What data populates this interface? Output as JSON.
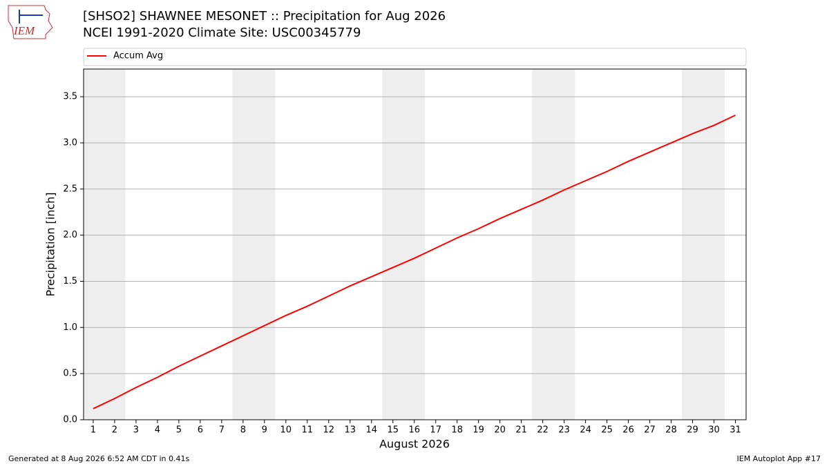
{
  "logo_text": "IEM",
  "footer_left": "Generated at 8 Aug 2026 6:52 AM CDT in 0.41s",
  "footer_right": "IEM Autoplot App #17",
  "chart_data": {
    "type": "line",
    "title": "[SHSO2] SHAWNEE MESONET :: Precipitation for Aug 2026",
    "subtitle": "NCEI 1991-2020 Climate Site: USC00345779",
    "x_label": "August 2026",
    "y_label": "Precipitation [inch]",
    "x": [
      1,
      2,
      3,
      4,
      5,
      6,
      7,
      8,
      9,
      10,
      11,
      12,
      13,
      14,
      15,
      16,
      17,
      18,
      19,
      20,
      21,
      22,
      23,
      24,
      25,
      26,
      27,
      28,
      29,
      30,
      31
    ],
    "series": [
      {
        "name": "Accum Avg",
        "color": "#ff0000",
        "values": [
          0.12,
          0.23,
          0.35,
          0.46,
          0.58,
          0.69,
          0.8,
          0.91,
          1.02,
          1.13,
          1.23,
          1.34,
          1.45,
          1.55,
          1.65,
          1.75,
          1.86,
          1.97,
          2.07,
          2.18,
          2.28,
          2.38,
          2.49,
          2.59,
          2.69,
          2.8,
          2.9,
          3.0,
          3.1,
          3.19,
          3.3
        ]
      }
    ],
    "xlim": [
      0.55,
      31.5
    ],
    "ylim": [
      0,
      3.8
    ],
    "xticks": [
      1,
      2,
      3,
      4,
      5,
      6,
      7,
      8,
      9,
      10,
      11,
      12,
      13,
      14,
      15,
      16,
      17,
      18,
      19,
      20,
      21,
      22,
      23,
      24,
      25,
      26,
      27,
      28,
      29,
      30,
      31
    ],
    "yticks": [
      {
        "value": 0,
        "label": "0.0"
      },
      0.5,
      {
        "value": 1,
        "label": "1.0"
      },
      1.5,
      {
        "value": 2,
        "label": "2.0"
      },
      2.5,
      {
        "value": 3,
        "label": "3.0"
      },
      3.5
    ],
    "shaded_bands": [
      [
        0.5,
        2.5
      ],
      [
        7.5,
        9.5
      ],
      [
        14.5,
        16.5
      ],
      [
        21.5,
        23.5
      ],
      [
        28.5,
        30.5
      ]
    ],
    "shade_color": "#eeeeee",
    "grid": true,
    "legend": "top"
  }
}
